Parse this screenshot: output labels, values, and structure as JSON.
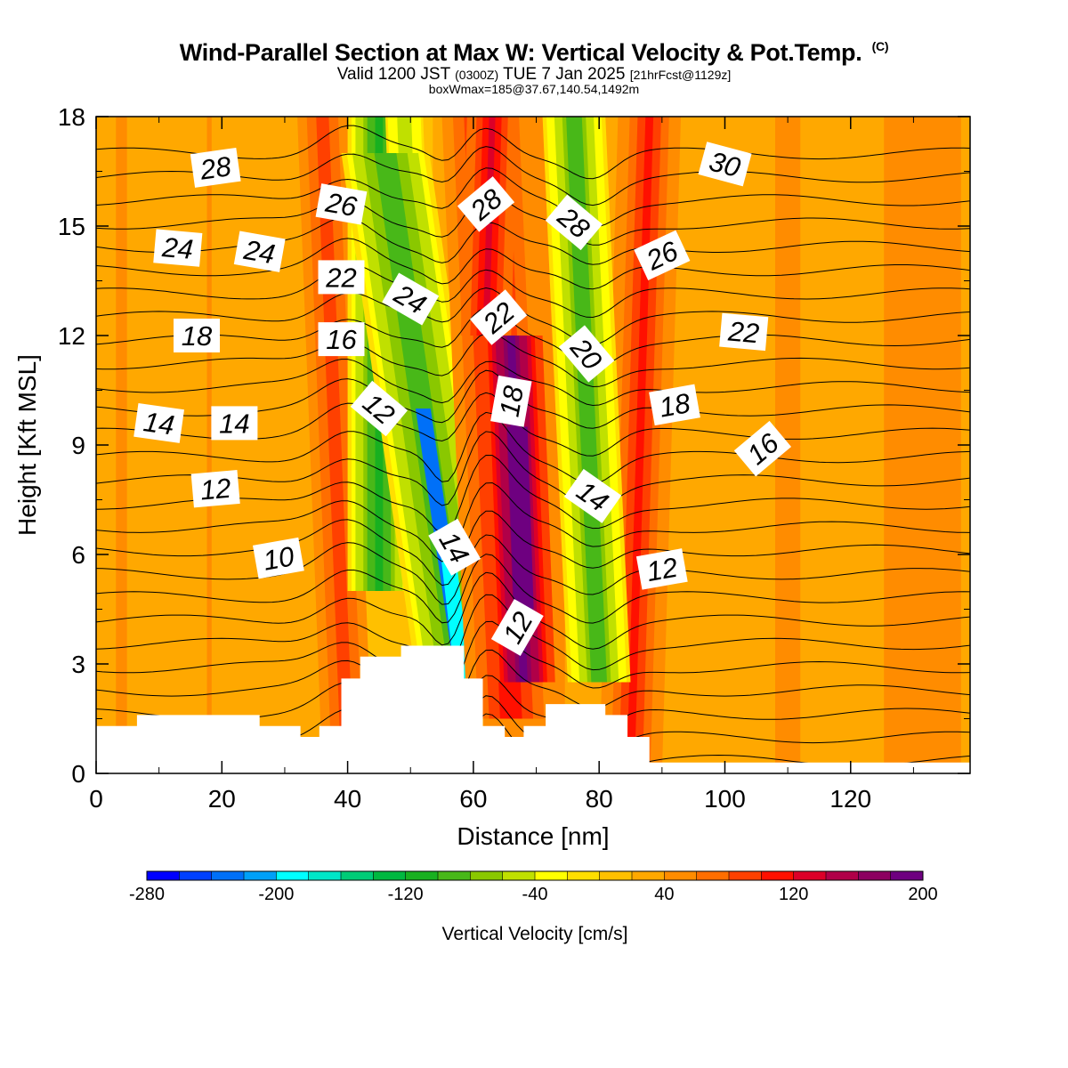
{
  "header": {
    "title": "Wind-Parallel Section at Max W: Vertical Velocity & Pot.Temp.",
    "copyright": "(C)",
    "valid_prefix": "Valid 1200 JST",
    "valid_zulu": "(0300Z)",
    "valid_date": "TUE 7 Jan 2025",
    "forecast": "[21hrFcst@1129z]",
    "box_info": "boxWmax=185@37.67,140.54,1492m"
  },
  "chart_data": {
    "type": "heatmap",
    "xlabel": "Distance [nm]",
    "ylabel": "Height [Kft MSL]",
    "xlim": [
      0,
      139
    ],
    "ylim": [
      0,
      18
    ],
    "x_ticks": [
      "0",
      "20",
      "40",
      "60",
      "80",
      "100",
      "120"
    ],
    "y_ticks": [
      "0",
      "3",
      "6",
      "9",
      "12",
      "15",
      "18"
    ],
    "colorbar": {
      "label": "Vertical Velocity [cm/s]",
      "tick_labels": [
        "-280",
        "-200",
        "-120",
        "-40",
        "40",
        "120",
        "200"
      ],
      "bounds": [
        -280,
        200
      ],
      "step": 20,
      "colors": [
        "#0000ff",
        "#0040ff",
        "#0070f8",
        "#00a0f8",
        "#00ffff",
        "#00e6c8",
        "#00cc77",
        "#00b840",
        "#18b020",
        "#48b818",
        "#8ac800",
        "#c0e000",
        "#ffff00",
        "#ffdf00",
        "#ffc000",
        "#ffa800",
        "#ff8c00",
        "#ff6e00",
        "#ff4000",
        "#ff1000",
        "#dc0028",
        "#b00048",
        "#8c0060",
        "#6e0080"
      ]
    },
    "band_series": [
      {
        "x": 18,
        "vmin": 20,
        "vmax": 45
      },
      {
        "x": 40,
        "vmin": 55,
        "vmax": 95
      },
      {
        "x": 45,
        "vmin": -120,
        "vmax": -100
      },
      {
        "x": 51,
        "vmin": -60,
        "vmax": -40
      },
      {
        "x": 56,
        "vmin": -240,
        "vmax": -130
      },
      {
        "x": 62,
        "vmin": 115,
        "vmax": 130
      },
      {
        "x": 68,
        "vmin": 185,
        "vmax": 200
      },
      {
        "x": 78,
        "vmin": -105,
        "vmax": -80
      },
      {
        "x": 86,
        "vmin": 80,
        "vmax": 115
      },
      {
        "x": 110,
        "vmin": 30,
        "vmax": 50
      }
    ],
    "terrain_kft": [
      [
        0,
        1.3
      ],
      [
        6.5,
        1.3
      ],
      [
        6.5,
        1.6
      ],
      [
        26,
        1.6
      ],
      [
        26,
        1.3
      ],
      [
        32.5,
        1.3
      ],
      [
        32.5,
        1.0
      ],
      [
        35.5,
        1.0
      ],
      [
        35.5,
        1.3
      ],
      [
        39,
        1.3
      ],
      [
        39,
        2.6
      ],
      [
        42,
        2.6
      ],
      [
        42,
        3.2
      ],
      [
        48.5,
        3.2
      ],
      [
        48.5,
        3.5
      ],
      [
        58.5,
        3.5
      ],
      [
        58.5,
        2.6
      ],
      [
        61.5,
        2.6
      ],
      [
        61.5,
        1.3
      ],
      [
        65,
        1.3
      ],
      [
        65,
        1.0
      ],
      [
        68,
        1.0
      ],
      [
        68,
        1.3
      ],
      [
        71.5,
        1.3
      ],
      [
        71.5,
        1.9
      ],
      [
        81,
        1.9
      ],
      [
        81,
        1.6
      ],
      [
        84.5,
        1.6
      ],
      [
        84.5,
        1.0
      ],
      [
        88,
        1.0
      ],
      [
        88,
        0.3
      ],
      [
        139,
        0.3
      ]
    ],
    "theta_label_values": [
      "28",
      "24",
      "24",
      "26",
      "22",
      "18",
      "14",
      "14",
      "12",
      "10",
      "16",
      "12",
      "28",
      "24",
      "22",
      "18",
      "14",
      "12",
      "28",
      "20",
      "14",
      "26",
      "18",
      "12",
      "30",
      "22",
      "16"
    ],
    "isentrope_count": 27
  }
}
